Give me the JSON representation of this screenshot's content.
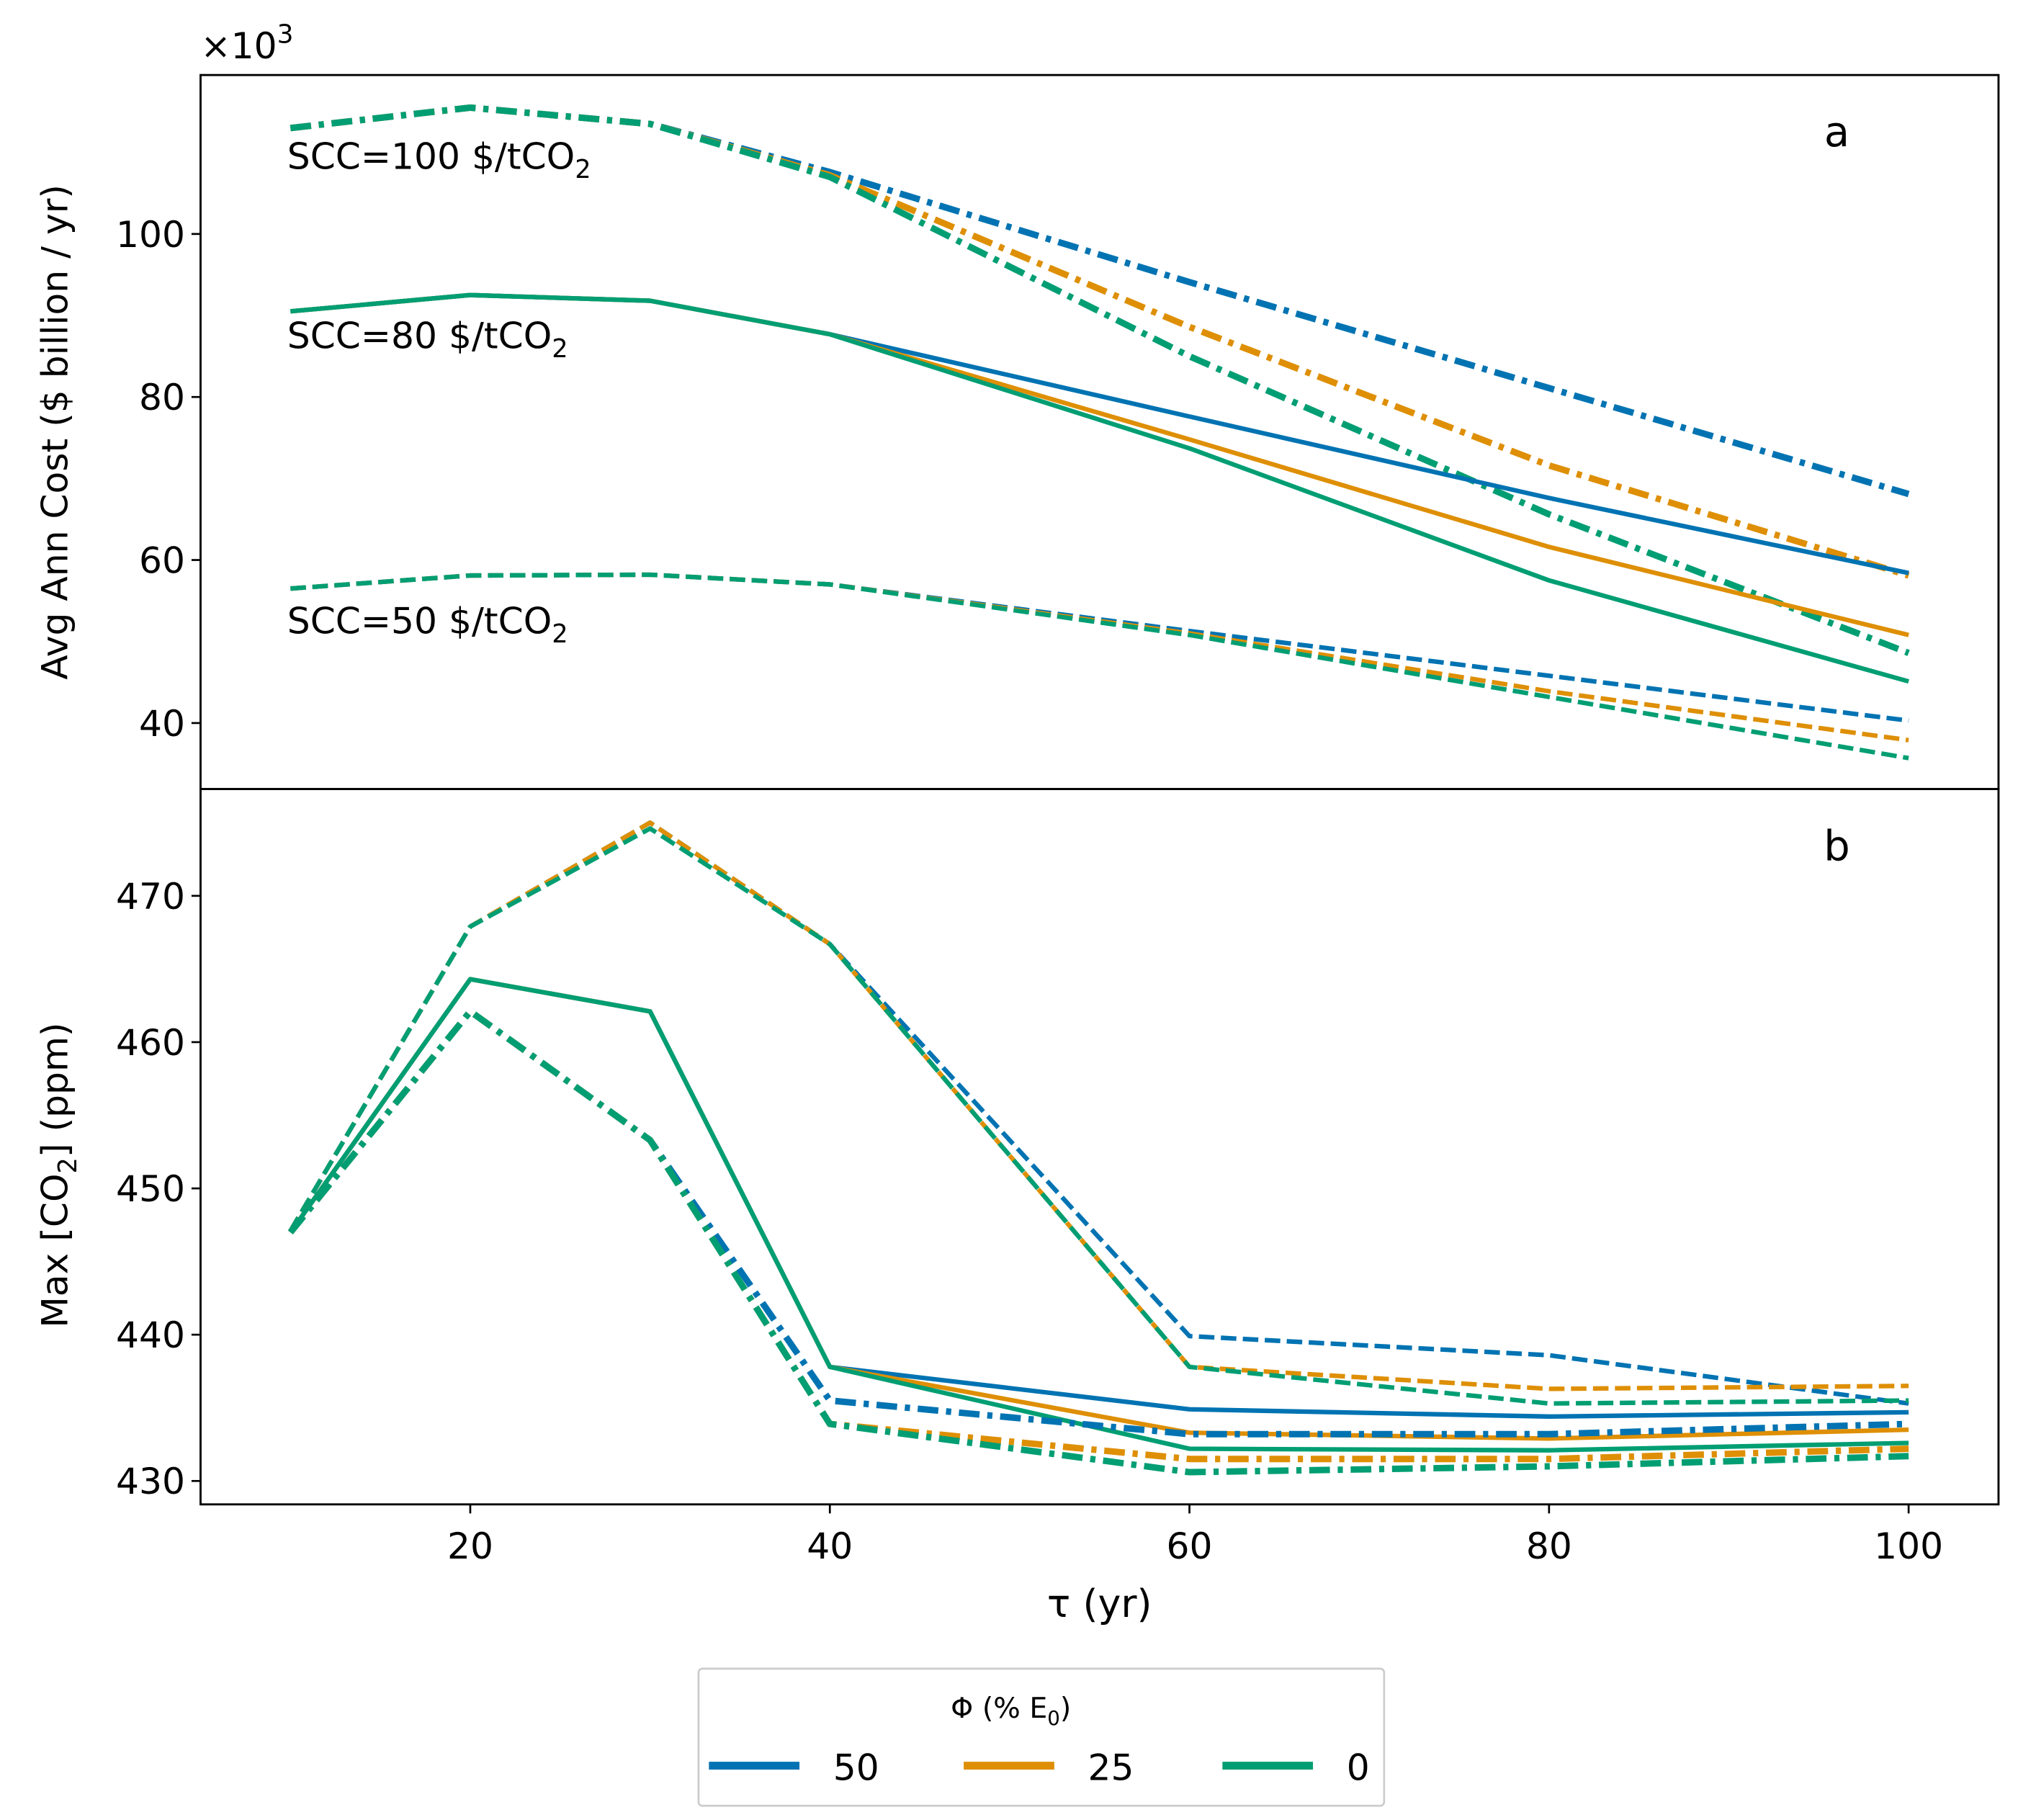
{
  "chart_data": [
    {
      "type": "line",
      "panel_label": "a",
      "ylabel": "Avg Ann Cost ($ billion / yr)",
      "y_multiplier": "×10",
      "y_multiplier_exp": "3",
      "xlim": [
        5,
        105
      ],
      "ylim": [
        31.9,
        119.5
      ],
      "yticks": [
        40,
        60,
        80,
        100
      ],
      "x": [
        10,
        20,
        30,
        40,
        60,
        80,
        100
      ],
      "annotations": [
        {
          "text": "SCC=100 $/tCO",
          "sub": "2",
          "at": [
            10,
            108
          ]
        },
        {
          "text": "SCC=80 $/tCO",
          "sub": "2",
          "at": [
            10,
            86
          ]
        },
        {
          "text": "SCC=50 $/tCO",
          "sub": "2",
          "at": [
            10,
            51
          ]
        }
      ],
      "series": [
        {
          "name": "SCC100 Φ=50",
          "phi": "50",
          "style": "dashdot",
          "values": [
            113,
            115.5,
            113.5,
            107.6,
            94.1,
            81.1,
            68.1
          ]
        },
        {
          "name": "SCC100 Φ=25",
          "phi": "25",
          "style": "dashdot",
          "values": [
            113,
            115.5,
            113.5,
            107.2,
            88.6,
            71.6,
            58.1
          ]
        },
        {
          "name": "SCC100 Φ=0",
          "phi": "0",
          "style": "dashdot",
          "values": [
            113,
            115.5,
            113.5,
            107.0,
            85.0,
            65.6,
            48.6
          ]
        },
        {
          "name": "SCC80 Φ=50",
          "phi": "50",
          "style": "solid",
          "values": [
            90.5,
            92.5,
            91.8,
            87.7,
            77.6,
            67.6,
            58.4
          ]
        },
        {
          "name": "SCC80 Φ=25",
          "phi": "25",
          "style": "solid",
          "values": [
            90.5,
            92.5,
            91.8,
            87.7,
            74.8,
            61.6,
            50.8
          ]
        },
        {
          "name": "SCC80 Φ=0",
          "phi": "0",
          "style": "solid",
          "values": [
            90.5,
            92.5,
            91.8,
            87.7,
            73.7,
            57.5,
            45.1
          ]
        },
        {
          "name": "SCC50 Φ=50",
          "phi": "50",
          "style": "dashed",
          "values": [
            56.5,
            58.1,
            58.2,
            57.0,
            51.3,
            45.8,
            40.3
          ]
        },
        {
          "name": "SCC50 Φ=25",
          "phi": "25",
          "style": "dashed",
          "values": [
            56.5,
            58.1,
            58.2,
            57.0,
            51.0,
            43.9,
            37.9
          ]
        },
        {
          "name": "SCC50 Φ=0",
          "phi": "0",
          "style": "dashed",
          "values": [
            56.5,
            58.1,
            58.2,
            57.0,
            50.8,
            43.2,
            35.7
          ]
        }
      ]
    },
    {
      "type": "line",
      "panel_label": "b",
      "ylabel": "Max [CO",
      "ylabel_sub": "2",
      "ylabel_tail": "] (ppm)",
      "xlabel": "τ (yr)",
      "xlim": [
        5,
        105
      ],
      "ylim": [
        428.4,
        477.3
      ],
      "xticks": [
        20,
        40,
        60,
        80,
        100
      ],
      "yticks": [
        430,
        440,
        450,
        460,
        470
      ],
      "x": [
        10,
        20,
        30,
        40,
        60,
        80,
        100
      ],
      "series": [
        {
          "name": "SCC50 Φ=50",
          "phi": "50",
          "style": "dashed",
          "values": [
            447.1,
            467.9,
            475.0,
            466.7,
            439.9,
            438.6,
            435.3
          ]
        },
        {
          "name": "SCC50 Φ=25",
          "phi": "25",
          "style": "dashed",
          "values": [
            447.1,
            467.9,
            475.0,
            466.7,
            437.8,
            436.3,
            436.5
          ]
        },
        {
          "name": "SCC50 Φ=0",
          "phi": "0",
          "style": "dashed",
          "values": [
            447.1,
            467.9,
            474.6,
            466.7,
            437.8,
            435.3,
            435.5
          ]
        },
        {
          "name": "SCC80 Φ=50",
          "phi": "50",
          "style": "solid",
          "values": [
            447.0,
            464.3,
            462.1,
            437.8,
            434.9,
            434.4,
            434.7
          ]
        },
        {
          "name": "SCC80 Φ=25",
          "phi": "25",
          "style": "solid",
          "values": [
            447.0,
            464.3,
            462.1,
            437.8,
            433.3,
            432.9,
            433.5
          ]
        },
        {
          "name": "SCC80 Φ=0",
          "phi": "0",
          "style": "solid",
          "values": [
            447.0,
            464.3,
            462.1,
            437.8,
            432.2,
            432.1,
            432.6
          ]
        },
        {
          "name": "SCC100 Φ=50",
          "phi": "50",
          "style": "dashdot",
          "values": [
            447.0,
            462.1,
            453.3,
            435.5,
            433.2,
            433.2,
            433.9
          ]
        },
        {
          "name": "SCC100 Φ=25",
          "phi": "25",
          "style": "dashdot",
          "values": [
            447.0,
            462.1,
            453.3,
            433.9,
            431.5,
            431.5,
            432.2
          ]
        },
        {
          "name": "SCC100 Φ=0",
          "phi": "0",
          "style": "dashdot",
          "values": [
            447.0,
            462.1,
            453.3,
            433.9,
            430.6,
            431.0,
            431.7
          ]
        }
      ]
    }
  ],
  "legend": {
    "title": "Φ (% E",
    "title_sub": "0",
    "title_tail": ")",
    "placement": "bottom-center",
    "entries": [
      {
        "label": "50",
        "phi": "50"
      },
      {
        "label": "25",
        "phi": "25"
      },
      {
        "label": "0",
        "phi": "0"
      }
    ]
  },
  "colors": {
    "50": "#0173b2",
    "25": "#de8f05",
    "0": "#029e73"
  }
}
